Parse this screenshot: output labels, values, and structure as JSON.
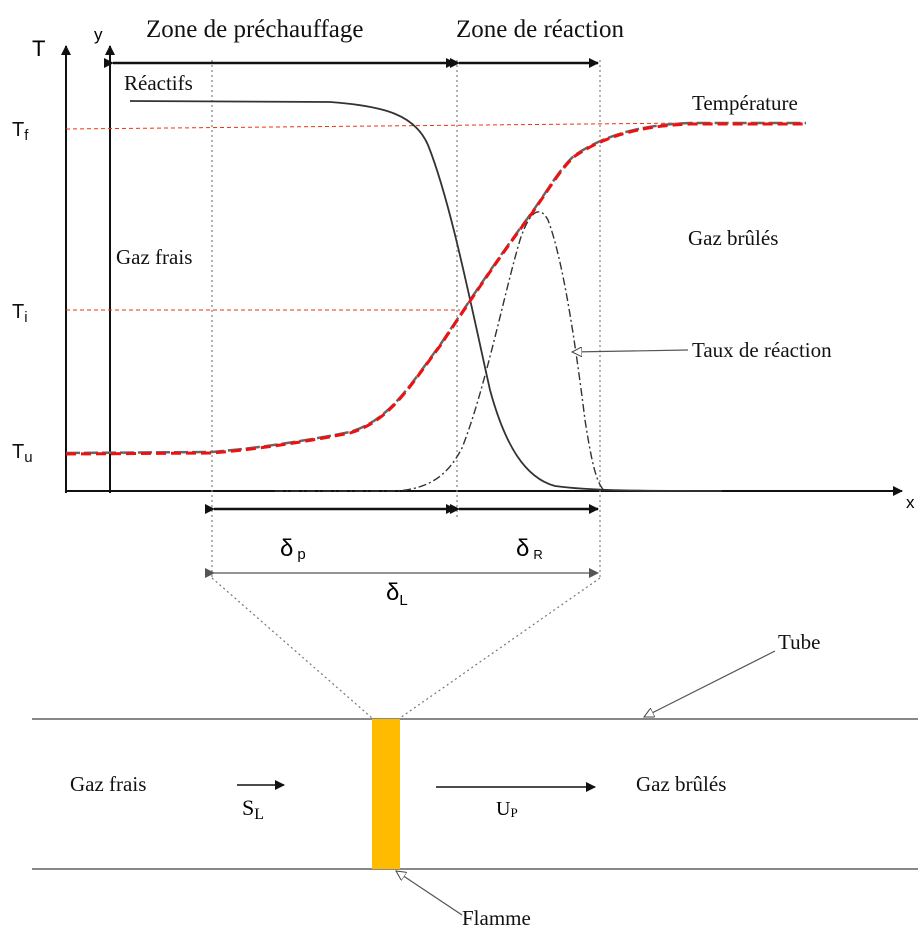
{
  "axes": {
    "y_axis_label": "T",
    "y_axis_label_2": "y",
    "x_axis_label": "x",
    "ticks": [
      {
        "id": "tf",
        "base": "T",
        "sub": "f"
      },
      {
        "id": "ti",
        "base": "T",
        "sub": "i"
      },
      {
        "id": "tu",
        "base": "T",
        "sub": "u"
      }
    ]
  },
  "zones": {
    "preheat": "Zone de préchauffage",
    "reaction": "Zone de réaction"
  },
  "curve_labels": {
    "reactants": "Réactifs",
    "temperature": "Température",
    "reaction_rate": "Taux de réaction"
  },
  "region_labels": {
    "fresh_gas": "Gaz frais",
    "burnt_gas": "Gaz brûlés"
  },
  "thickness": {
    "delta_p": {
      "base": "δ",
      "sub": "p"
    },
    "delta_r": {
      "base": "δ",
      "sub": "R"
    },
    "delta_l": {
      "base": "δ",
      "sub": "L"
    }
  },
  "tube": {
    "tube_label": "Tube",
    "flame_label": "Flamme",
    "fresh_gas": "Gaz frais",
    "burnt_gas": "Gaz brûlés",
    "s_l": {
      "base": "S",
      "sub": "L"
    },
    "u_p": {
      "base": "U",
      "sub": "P"
    }
  },
  "colors": {
    "temperature_curve": "#ee1111",
    "guide_line": "#ee3311",
    "flame": "#ffbb00",
    "axis": "#111111"
  }
}
